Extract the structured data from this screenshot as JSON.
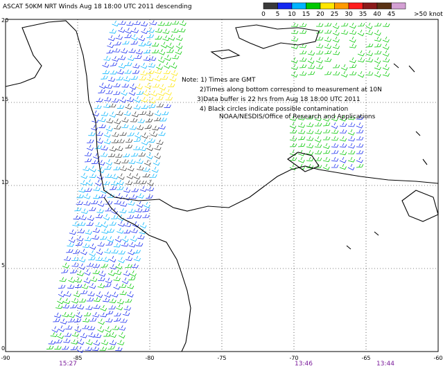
{
  "header": {
    "title": "ASCAT 50KM NRT Winds  Aug 18 18:00 UTC 2011 descending"
  },
  "legend": {
    "labels": [
      "0",
      "5",
      "10",
      "15",
      "20",
      "25",
      "30",
      "35",
      "40",
      "45",
      ">50 knots"
    ],
    "colors": [
      "#3a3a3a",
      "#ffffff",
      "#1428f0",
      "#00b4ff",
      "#00c800",
      "#ffe600",
      "#ff9a00",
      "#ff1e1e",
      "#8b1a1a",
      "#5a3214",
      "#d4a0d4"
    ]
  },
  "map": {
    "lon_range": [
      -90,
      -60
    ],
    "lat_range": [
      0,
      20
    ],
    "lon_ticks": [
      -90,
      -85,
      -80,
      -75,
      -70,
      -65,
      -60
    ],
    "lat_ticks": [
      0,
      5,
      10,
      15,
      20
    ],
    "times": [
      "15:27",
      "13:46",
      "13:44"
    ]
  },
  "notes": [
    "Note:  1) Times are GMT",
    "2)Times along bottom correspond to measurement at 10N",
    "3)Data buffer is 22 hrs from Aug 18 18:00 UTC 2011",
    "4) Black circles indicate possible contamination",
    "NOAA/NESDIS/Office of Research and Applications"
  ]
}
